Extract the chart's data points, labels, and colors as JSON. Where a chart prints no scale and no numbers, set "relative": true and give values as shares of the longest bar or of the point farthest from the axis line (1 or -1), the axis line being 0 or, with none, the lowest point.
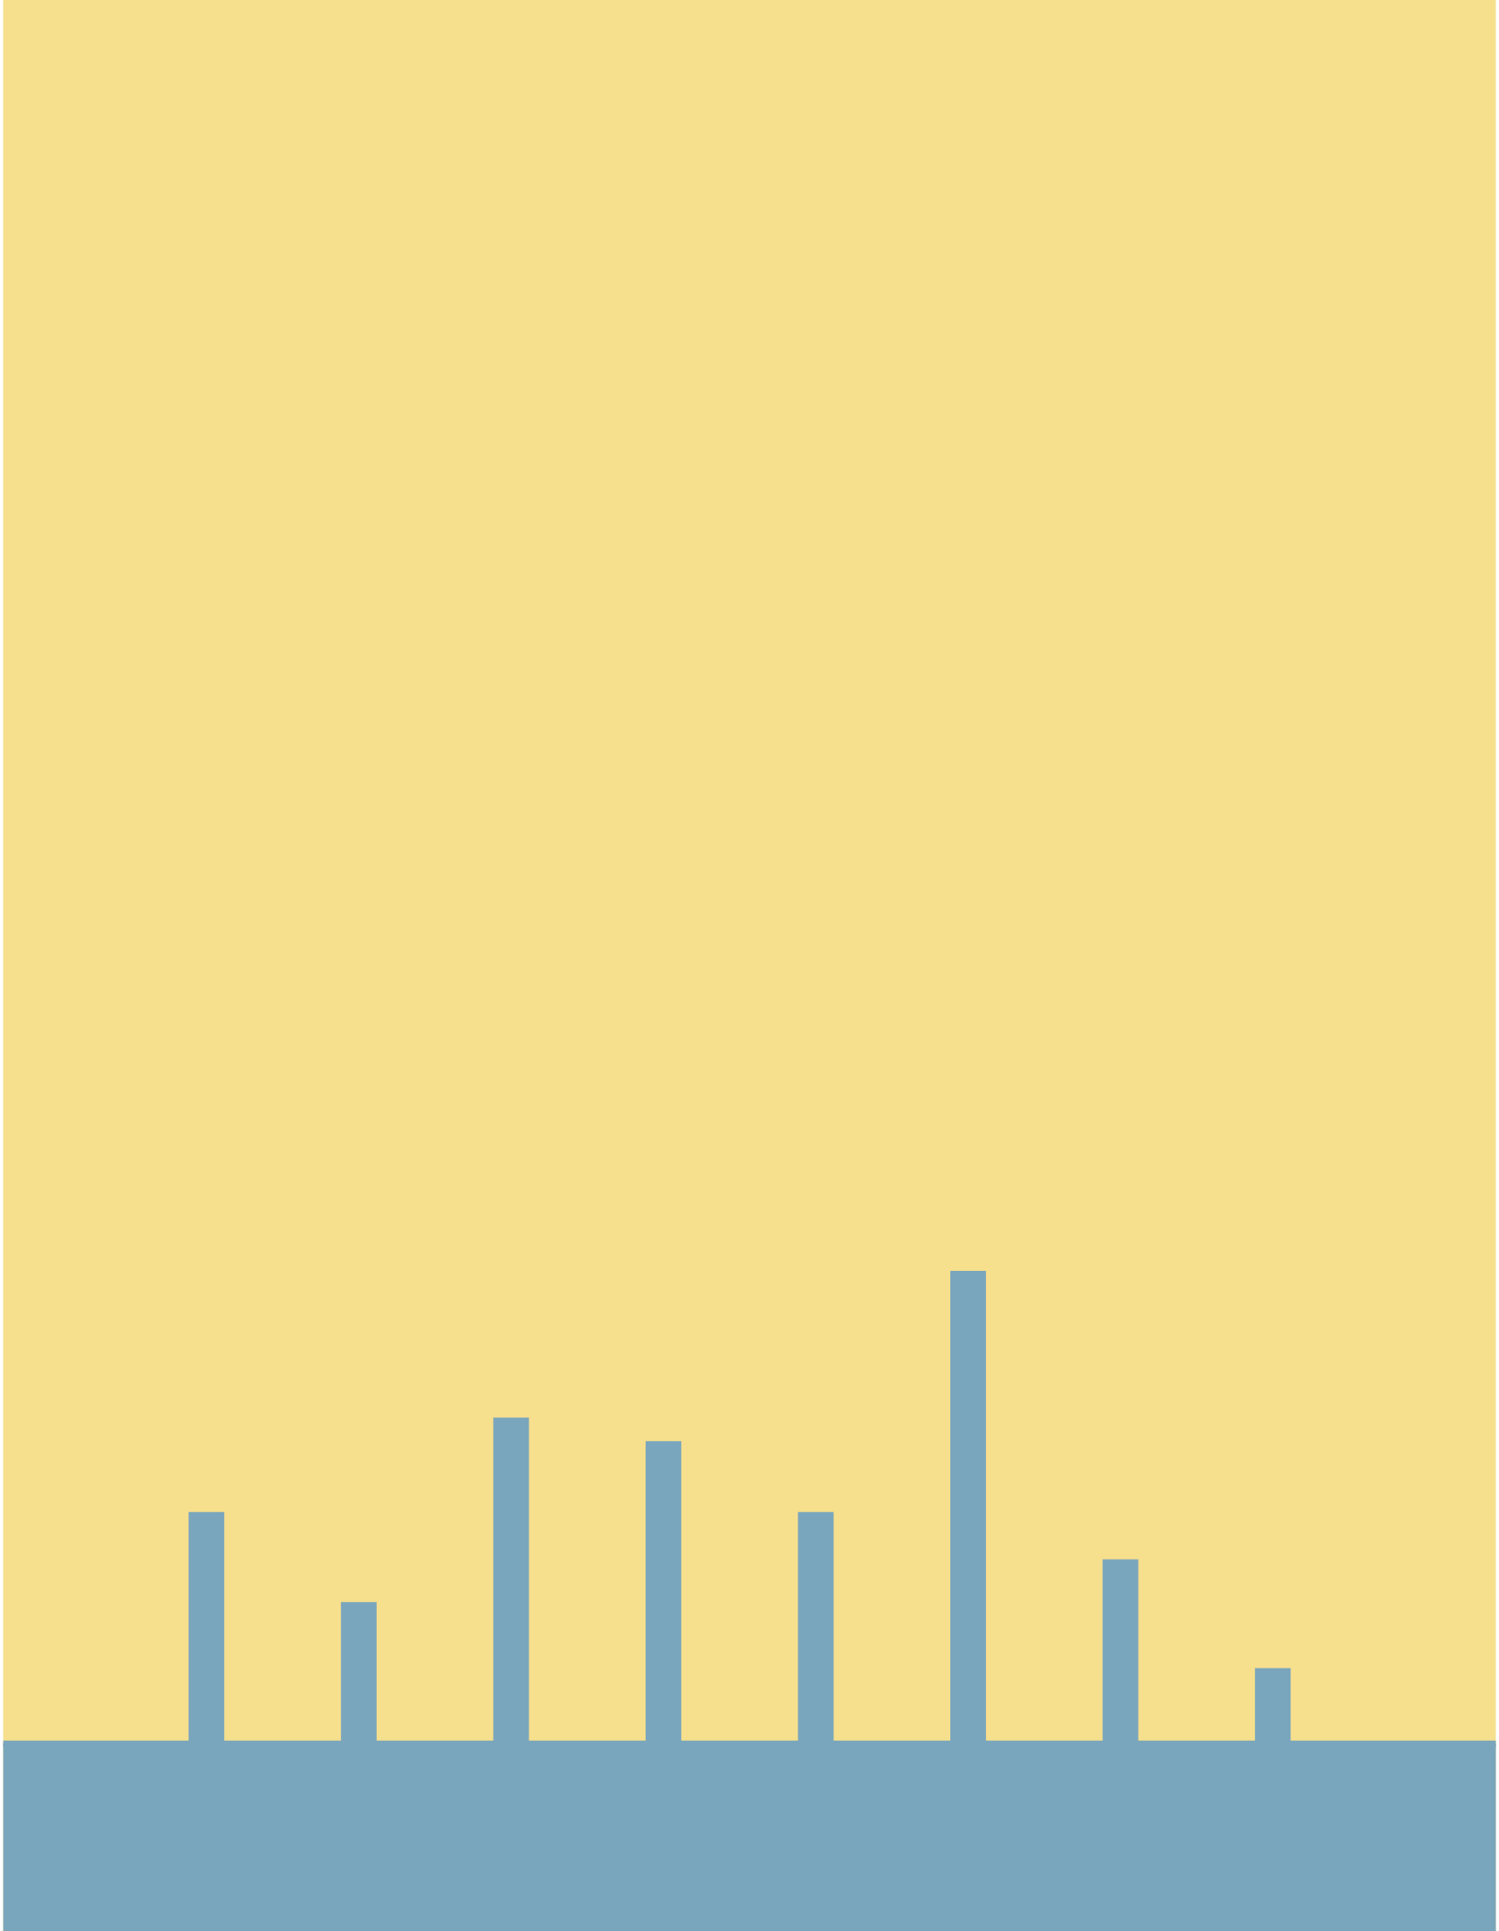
{
  "chart_data": {
    "type": "bar",
    "relative": true,
    "color": "#7aa6bd",
    "categories": [
      null,
      null,
      null,
      null,
      null,
      null,
      null,
      null
    ],
    "values": [
      0.49,
      0.3,
      0.69,
      0.64,
      0.49,
      1,
      0.39,
      0.16
    ]
  }
}
